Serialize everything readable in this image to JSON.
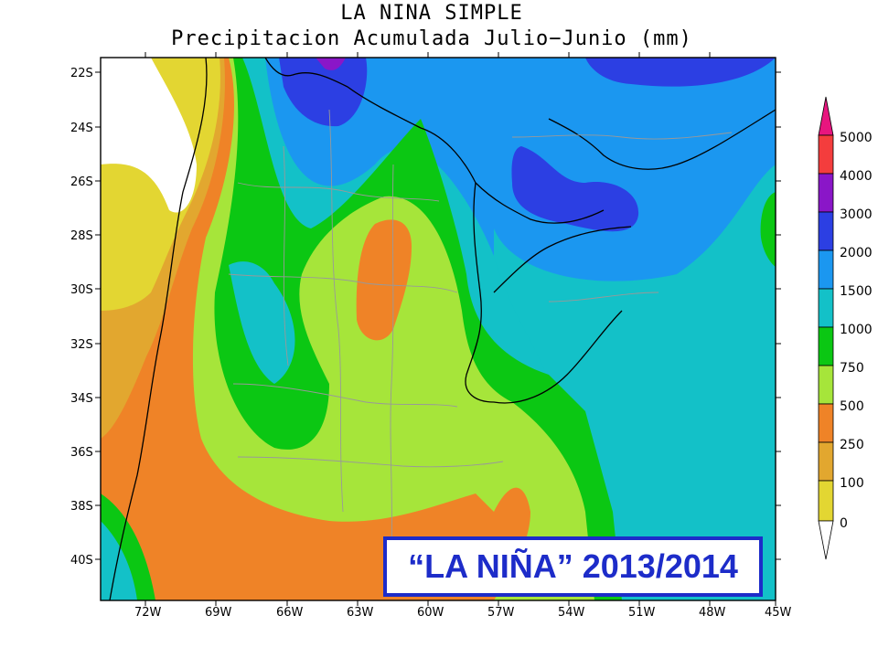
{
  "title": "LA NINA SIMPLE",
  "subtitle": "Precipitacion Acumulada Julio−Junio (mm)",
  "banner": "“LA NIÑA” 2013/2014",
  "latitude_labels": [
    "22S",
    "24S",
    "26S",
    "28S",
    "30S",
    "32S",
    "34S",
    "36S",
    "38S",
    "40S"
  ],
  "longitude_labels": [
    "72W",
    "69W",
    "66W",
    "63W",
    "60W",
    "57W",
    "54W",
    "51W",
    "48W",
    "45W"
  ],
  "colorbar": {
    "levels": [
      "5000",
      "4000",
      "3000",
      "2000",
      "1500",
      "1000",
      "750",
      "500",
      "250",
      "100",
      "0"
    ],
    "colors": {
      "above_5000": "#e8157f",
      "4000_5000": "#f43d3d",
      "3000_4000": "#8a16c8",
      "2000_3000": "#2c3fe3",
      "1500_2000": "#1b97f0",
      "1000_1500": "#13c1c8",
      "750_1000": "#0bc713",
      "500_750": "#a6e53a",
      "250_500": "#ef8327",
      "100_250": "#e2a72f",
      "0_100": "#e3d632",
      "below_0": "#ffffff"
    }
  }
}
